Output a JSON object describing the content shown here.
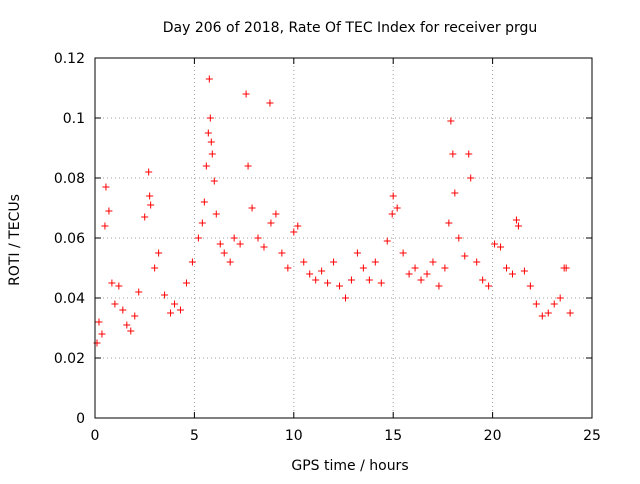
{
  "chart_data": {
    "type": "scatter",
    "title": "Day 206 of 2018, Rate Of TEC Index for receiver prgu",
    "xlabel": "GPS time / hours",
    "ylabel": "ROTI / TECUs",
    "xlim": [
      0,
      25
    ],
    "ylim": [
      0,
      0.12
    ],
    "x_ticks": [
      0,
      5,
      10,
      15,
      20,
      25
    ],
    "x_tick_labels": [
      "0",
      "5",
      "10",
      "15",
      "20",
      "25"
    ],
    "y_ticks": [
      0,
      0.02,
      0.04,
      0.06,
      0.08,
      0.1,
      0.12
    ],
    "y_tick_labels": [
      "0",
      "0.02",
      "0.04",
      "0.06",
      "0.08",
      "0.1",
      "0.12"
    ],
    "grid": true,
    "marker": "plus",
    "marker_color": "#ff0000",
    "series": [
      {
        "name": "ROTI",
        "x": [
          0.1,
          0.2,
          0.35,
          0.5,
          0.55,
          0.7,
          0.85,
          1.0,
          1.2,
          1.4,
          1.6,
          1.8,
          2.0,
          2.2,
          2.5,
          2.7,
          2.75,
          2.8,
          3.0,
          3.2,
          3.5,
          3.8,
          4.0,
          4.3,
          4.6,
          4.9,
          5.2,
          5.4,
          5.5,
          5.6,
          5.7,
          5.75,
          5.8,
          5.85,
          5.9,
          6.0,
          6.1,
          6.3,
          6.5,
          6.8,
          7.0,
          7.3,
          7.6,
          7.7,
          7.9,
          8.2,
          8.5,
          8.8,
          8.85,
          9.1,
          9.4,
          9.7,
          10.0,
          10.2,
          10.5,
          10.8,
          11.1,
          11.4,
          11.7,
          12.0,
          12.3,
          12.6,
          12.9,
          13.2,
          13.5,
          13.8,
          14.1,
          14.4,
          14.7,
          14.95,
          15.0,
          15.2,
          15.5,
          15.8,
          16.1,
          16.4,
          16.7,
          17.0,
          17.3,
          17.6,
          17.8,
          17.9,
          18.0,
          18.1,
          18.3,
          18.6,
          18.8,
          18.9,
          19.2,
          19.5,
          19.8,
          20.1,
          20.4,
          20.7,
          21.0,
          21.2,
          21.3,
          21.6,
          21.9,
          22.2,
          22.5,
          22.8,
          23.1,
          23.4,
          23.6,
          23.7,
          23.9
        ],
        "y": [
          0.025,
          0.032,
          0.028,
          0.064,
          0.077,
          0.069,
          0.045,
          0.038,
          0.044,
          0.036,
          0.031,
          0.029,
          0.034,
          0.042,
          0.067,
          0.082,
          0.074,
          0.071,
          0.05,
          0.055,
          0.041,
          0.035,
          0.038,
          0.036,
          0.045,
          0.052,
          0.06,
          0.065,
          0.072,
          0.084,
          0.095,
          0.113,
          0.1,
          0.092,
          0.088,
          0.079,
          0.068,
          0.058,
          0.055,
          0.052,
          0.06,
          0.058,
          0.108,
          0.084,
          0.07,
          0.06,
          0.057,
          0.105,
          0.065,
          0.068,
          0.055,
          0.05,
          0.062,
          0.064,
          0.052,
          0.048,
          0.046,
          0.049,
          0.045,
          0.052,
          0.044,
          0.04,
          0.046,
          0.055,
          0.05,
          0.046,
          0.052,
          0.045,
          0.059,
          0.068,
          0.074,
          0.07,
          0.055,
          0.048,
          0.05,
          0.046,
          0.048,
          0.052,
          0.044,
          0.05,
          0.065,
          0.099,
          0.088,
          0.075,
          0.06,
          0.054,
          0.088,
          0.08,
          0.052,
          0.046,
          0.044,
          0.058,
          0.057,
          0.05,
          0.048,
          0.066,
          0.064,
          0.049,
          0.044,
          0.038,
          0.034,
          0.035,
          0.038,
          0.04,
          0.05,
          0.05,
          0.035
        ]
      }
    ]
  }
}
